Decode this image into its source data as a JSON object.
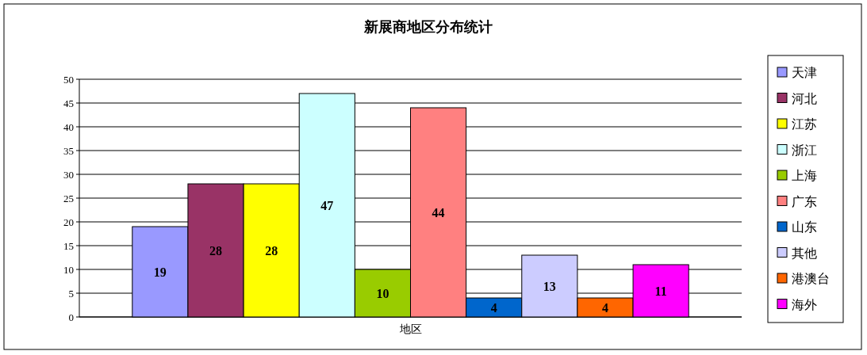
{
  "chart_data": {
    "type": "bar",
    "title": "新展商地区分布统计",
    "categories": [
      "地区"
    ],
    "series": [
      {
        "name": "天津",
        "color": "#9999ff",
        "values": [
          19
        ]
      },
      {
        "name": "河北",
        "color": "#993366",
        "values": [
          28
        ]
      },
      {
        "name": "江苏",
        "color": "#ffff00",
        "values": [
          28
        ]
      },
      {
        "name": "浙江",
        "color": "#ccffff",
        "values": [
          47
        ]
      },
      {
        "name": "上海",
        "color": "#99cc00",
        "values": [
          10
        ]
      },
      {
        "name": "广东",
        "color": "#ff8080",
        "values": [
          44
        ]
      },
      {
        "name": "山东",
        "color": "#0066cc",
        "values": [
          4
        ]
      },
      {
        "name": "其他",
        "color": "#ccccff",
        "values": [
          13
        ]
      },
      {
        "name": "港澳台",
        "color": "#ff6600",
        "values": [
          4
        ]
      },
      {
        "name": "海外",
        "color": "#ff00ff",
        "values": [
          11
        ]
      }
    ],
    "ylim": [
      0,
      50
    ],
    "yticks": [
      0,
      5,
      10,
      15,
      20,
      25,
      30,
      35,
      40,
      45,
      50
    ],
    "grid": "y",
    "legend": "right",
    "data_labels": true
  }
}
